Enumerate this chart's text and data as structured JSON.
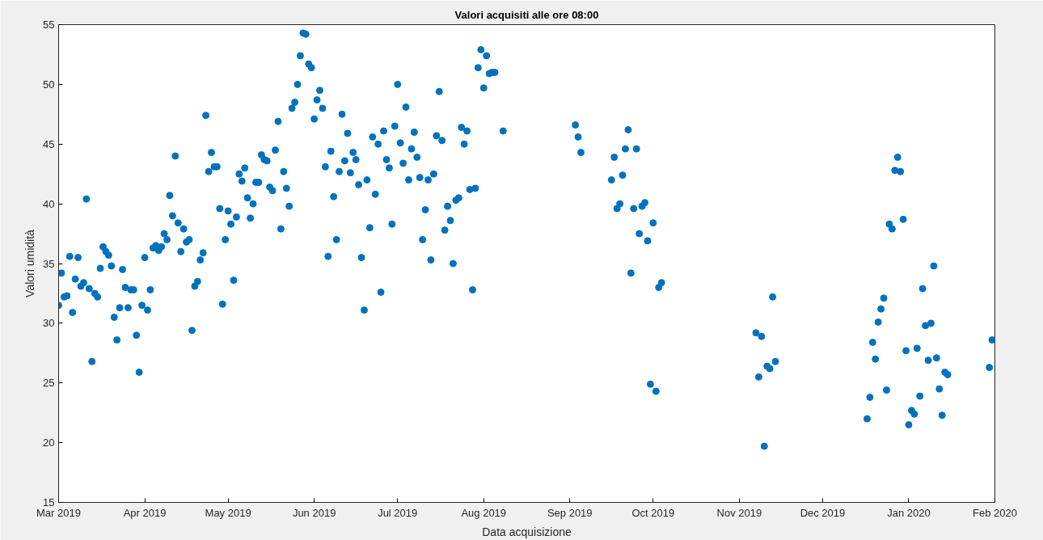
{
  "chart_data": {
    "type": "scatter",
    "title": "Valori acquisiti alle ore 08:00",
    "xlabel": "Data acquisizione",
    "ylabel": "Valori umidità",
    "marker": "circle",
    "grid": false,
    "xlim": [
      "2019-03-01",
      "2020-02-01"
    ],
    "xticks": [
      {
        "value": "2019-03-01",
        "label": "Mar 2019"
      },
      {
        "value": "2019-04-01",
        "label": "Apr 2019"
      },
      {
        "value": "2019-05-01",
        "label": "May 2019"
      },
      {
        "value": "2019-06-01",
        "label": "Jun 2019"
      },
      {
        "value": "2019-07-01",
        "label": "Jul 2019"
      },
      {
        "value": "2019-08-01",
        "label": "Aug 2019"
      },
      {
        "value": "2019-09-01",
        "label": "Sep 2019"
      },
      {
        "value": "2019-10-01",
        "label": "Oct 2019"
      },
      {
        "value": "2019-11-01",
        "label": "Nov 2019"
      },
      {
        "value": "2019-12-01",
        "label": "Dec 2019"
      },
      {
        "value": "2020-01-01",
        "label": "Jan 2020"
      },
      {
        "value": "2020-02-01",
        "label": "Feb 2020"
      }
    ],
    "ylim": [
      15,
      55
    ],
    "yticks": [
      15,
      20,
      25,
      30,
      35,
      40,
      45,
      50,
      55
    ],
    "series": [
      {
        "color": "#0072bd",
        "x": [
          "2019-03-01",
          "2019-03-02",
          "2019-03-03",
          "2019-03-04",
          "2019-03-05",
          "2019-03-06",
          "2019-03-07",
          "2019-03-08",
          "2019-03-09",
          "2019-03-10",
          "2019-03-11",
          "2019-03-12",
          "2019-03-13",
          "2019-03-14",
          "2019-03-15",
          "2019-03-16",
          "2019-03-17",
          "2019-03-18",
          "2019-03-19",
          "2019-03-20",
          "2019-03-21",
          "2019-03-22",
          "2019-03-23",
          "2019-03-24",
          "2019-03-25",
          "2019-03-26",
          "2019-03-27",
          "2019-03-28",
          "2019-03-29",
          "2019-03-30",
          "2019-03-31",
          "2019-04-01",
          "2019-04-02",
          "2019-04-03",
          "2019-04-04",
          "2019-04-05",
          "2019-04-06",
          "2019-04-07",
          "2019-04-08",
          "2019-04-09",
          "2019-04-10",
          "2019-04-11",
          "2019-04-12",
          "2019-04-13",
          "2019-04-14",
          "2019-04-15",
          "2019-04-16",
          "2019-04-17",
          "2019-04-18",
          "2019-04-19",
          "2019-04-20",
          "2019-04-21",
          "2019-04-22",
          "2019-04-23",
          "2019-04-24",
          "2019-04-25",
          "2019-04-26",
          "2019-04-27",
          "2019-04-28",
          "2019-04-29",
          "2019-04-30",
          "2019-05-01",
          "2019-05-02",
          "2019-05-03",
          "2019-05-04",
          "2019-05-05",
          "2019-05-06",
          "2019-05-07",
          "2019-05-08",
          "2019-05-09",
          "2019-05-10",
          "2019-05-11",
          "2019-05-12",
          "2019-05-13",
          "2019-05-14",
          "2019-05-15",
          "2019-05-16",
          "2019-05-17",
          "2019-05-18",
          "2019-05-19",
          "2019-05-20",
          "2019-05-21",
          "2019-05-22",
          "2019-05-23",
          "2019-05-24",
          "2019-05-25",
          "2019-05-26",
          "2019-05-27",
          "2019-05-28",
          "2019-05-29",
          "2019-05-30",
          "2019-05-31",
          "2019-06-01",
          "2019-06-02",
          "2019-06-03",
          "2019-06-04",
          "2019-06-05",
          "2019-06-06",
          "2019-06-07",
          "2019-06-08",
          "2019-06-09",
          "2019-06-10",
          "2019-06-11",
          "2019-06-12",
          "2019-06-13",
          "2019-06-14",
          "2019-06-15",
          "2019-06-16",
          "2019-06-17",
          "2019-06-18",
          "2019-06-19",
          "2019-06-20",
          "2019-06-21",
          "2019-06-22",
          "2019-06-23",
          "2019-06-24",
          "2019-06-25",
          "2019-06-26",
          "2019-06-27",
          "2019-06-28",
          "2019-06-29",
          "2019-06-30",
          "2019-07-01",
          "2019-07-02",
          "2019-07-03",
          "2019-07-04",
          "2019-07-05",
          "2019-07-06",
          "2019-07-07",
          "2019-07-08",
          "2019-07-09",
          "2019-07-10",
          "2019-07-11",
          "2019-07-12",
          "2019-07-13",
          "2019-07-14",
          "2019-07-15",
          "2019-07-16",
          "2019-07-17",
          "2019-07-18",
          "2019-07-19",
          "2019-07-20",
          "2019-07-21",
          "2019-07-22",
          "2019-07-23",
          "2019-07-24",
          "2019-07-25",
          "2019-07-26",
          "2019-07-27",
          "2019-07-28",
          "2019-07-29",
          "2019-07-30",
          "2019-07-31",
          "2019-08-01",
          "2019-08-02",
          "2019-08-03",
          "2019-08-04",
          "2019-08-05",
          "2019-08-08",
          "2019-09-03",
          "2019-09-04",
          "2019-09-05",
          "2019-09-16",
          "2019-09-17",
          "2019-09-18",
          "2019-09-19",
          "2019-09-20",
          "2019-09-21",
          "2019-09-22",
          "2019-09-23",
          "2019-09-24",
          "2019-09-25",
          "2019-09-26",
          "2019-09-27",
          "2019-09-28",
          "2019-09-29",
          "2019-09-30",
          "2019-10-01",
          "2019-10-02",
          "2019-10-03",
          "2019-10-04",
          "2019-11-07",
          "2019-11-08",
          "2019-11-09",
          "2019-11-10",
          "2019-11-11",
          "2019-11-12",
          "2019-11-13",
          "2019-11-14",
          "2019-12-17",
          "2019-12-18",
          "2019-12-19",
          "2019-12-20",
          "2019-12-21",
          "2019-12-22",
          "2019-12-23",
          "2019-12-24",
          "2019-12-25",
          "2019-12-26",
          "2019-12-27",
          "2019-12-28",
          "2019-12-29",
          "2019-12-30",
          "2019-12-31",
          "2020-01-01",
          "2020-01-02",
          "2020-01-03",
          "2020-01-04",
          "2020-01-05",
          "2020-01-06",
          "2020-01-07",
          "2020-01-08",
          "2020-01-09",
          "2020-01-10",
          "2020-01-11",
          "2020-01-12",
          "2020-01-13",
          "2020-01-14",
          "2020-01-15",
          "2020-01-30",
          "2020-01-31"
        ],
        "values": [
          31.5,
          34.2,
          32.2,
          32.3,
          35.6,
          30.9,
          33.7,
          35.5,
          33.1,
          33.4,
          40.4,
          32.9,
          26.8,
          32.5,
          32.2,
          34.6,
          36.4,
          36.0,
          35.7,
          34.8,
          30.5,
          28.6,
          31.3,
          34.5,
          33.0,
          31.3,
          32.8,
          32.8,
          29.0,
          25.9,
          31.5,
          35.5,
          31.1,
          32.8,
          36.3,
          36.5,
          36.1,
          36.4,
          37.5,
          37.0,
          40.7,
          39.0,
          44.0,
          38.4,
          36.0,
          37.9,
          36.8,
          37.0,
          29.4,
          33.1,
          33.5,
          35.3,
          35.9,
          47.4,
          42.7,
          44.3,
          43.1,
          43.1,
          39.6,
          31.6,
          37.0,
          39.4,
          38.3,
          33.6,
          38.9,
          42.5,
          41.9,
          43.0,
          40.5,
          38.8,
          40.0,
          41.8,
          41.8,
          44.1,
          43.7,
          43.6,
          41.4,
          41.1,
          44.5,
          46.9,
          37.9,
          42.7,
          41.3,
          39.8,
          48.0,
          48.5,
          50.0,
          52.4,
          54.3,
          54.2,
          51.7,
          51.4,
          47.1,
          48.7,
          49.5,
          48.0,
          43.1,
          35.6,
          44.4,
          40.6,
          37.0,
          42.7,
          47.5,
          43.6,
          45.9,
          42.6,
          44.3,
          43.7,
          41.6,
          35.5,
          31.1,
          42.0,
          38.0,
          45.6,
          40.8,
          45.0,
          32.6,
          46.1,
          43.7,
          43.0,
          38.3,
          46.5,
          50.0,
          45.1,
          43.4,
          48.1,
          42.0,
          44.6,
          46.0,
          43.9,
          42.2,
          37.0,
          39.5,
          42.0,
          35.3,
          42.5,
          45.7,
          49.4,
          45.3,
          37.8,
          39.8,
          38.6,
          35.0,
          40.3,
          40.5,
          46.4,
          45.0,
          46.1,
          41.2,
          32.8,
          41.3,
          51.4,
          52.9,
          49.7,
          52.4,
          50.9,
          51.0,
          51.0,
          46.1,
          46.6,
          45.6,
          44.3,
          42.0,
          43.9,
          39.6,
          40.0,
          42.4,
          44.6,
          46.2,
          34.2,
          39.6,
          44.6,
          37.5,
          39.8,
          40.1,
          36.9,
          24.9,
          38.4,
          24.3,
          33.0,
          33.4,
          29.2,
          25.5,
          28.9,
          19.7,
          26.4,
          26.2,
          32.2,
          26.8,
          22.0,
          23.8,
          28.4,
          27.0,
          30.1,
          31.2,
          32.1,
          24.4,
          38.3,
          37.9,
          42.8,
          43.9,
          42.7,
          38.7,
          27.7,
          21.5,
          22.7,
          22.4,
          27.9,
          23.9,
          32.9,
          29.8,
          26.9,
          30.0,
          34.8,
          27.1,
          24.5,
          22.3,
          25.9,
          25.7,
          26.3,
          28.6
        ]
      }
    ]
  }
}
